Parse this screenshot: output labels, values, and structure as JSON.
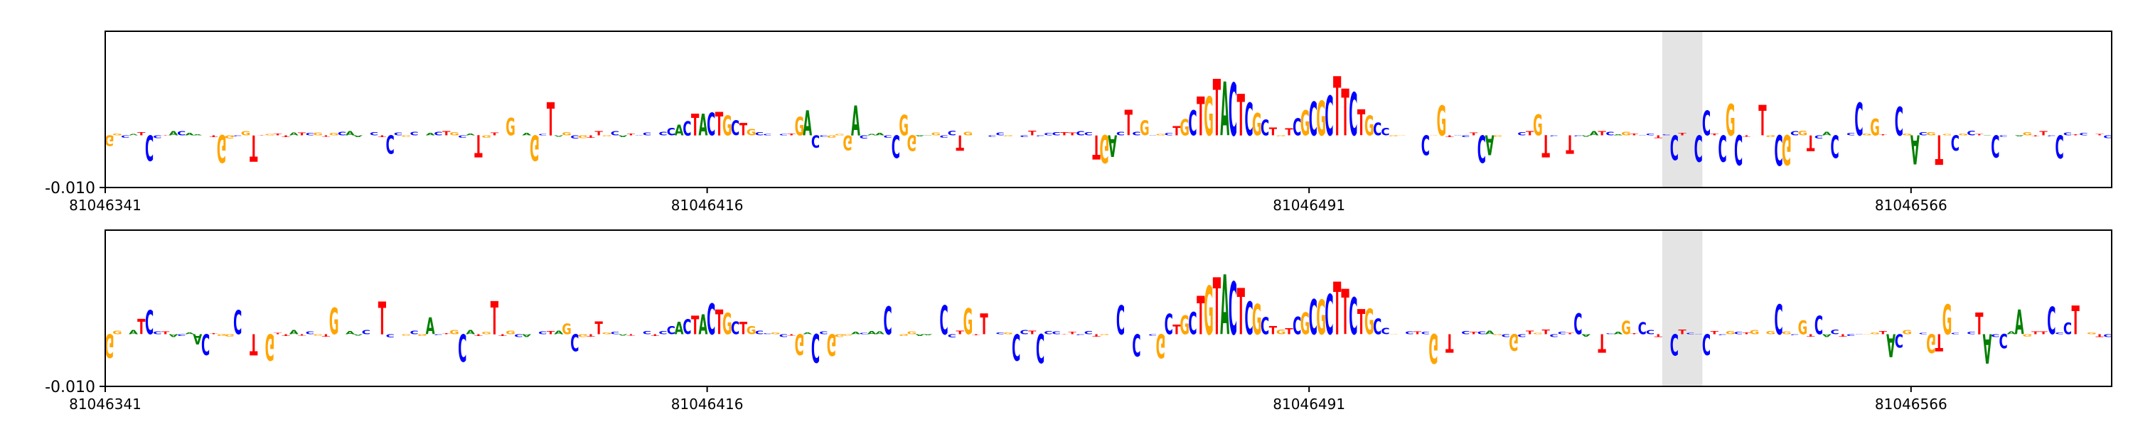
{
  "colors": {
    "A": "#008000",
    "C": "#0000ff",
    "G": "#ffa500",
    "T": "#ff0000",
    "highlight": "#e4e4e4",
    "axis": "#000000"
  },
  "chart_data": [
    {
      "type": "sequence-logo",
      "x_start": 81046341,
      "x_end": 81046591,
      "xticks": [
        "81046341",
        "81046416",
        "81046491",
        "81046566"
      ],
      "ytick_label": "-0.010",
      "ylim": [
        -0.01,
        0.02
      ],
      "highlight_range": [
        81046535,
        81046540
      ],
      "sequence": "GGCATCCTACAACTGGCGTTGTTATCGTGCAACCTCCGCGACTGCATGTTGCAGCTAGCGTTGCATCCTCCACTACTGCTGCCGCTGACCGGGACAACCGGAAGCCTGTTCCGCCTCCCTTCCTGACTCGCGCTGCTGTACTCGCTGTCGCGCTTCTGCCGGCTCGGTCCTCAGCGCTGTCCTCAATCAGTCCTCCTCCCTCGCTGTGCGCGTCACTCCGGTACGACGTGCGCTACCAAGTTCCCTCGTCCCT",
      "peaks": [
        {
          "pos": 81046416,
          "h": 0.006
        },
        {
          "pos": 81046480,
          "h": 0.014
        },
        {
          "pos": 81046494,
          "h": 0.012
        }
      ]
    },
    {
      "type": "sequence-logo",
      "x_start": 81046341,
      "x_end": 81046591,
      "xticks": [
        "81046341",
        "81046416",
        "81046491",
        "81046566"
      ],
      "ytick_label": "-0.010",
      "ylim": [
        -0.01,
        0.02
      ],
      "highlight_range": [
        81046535,
        81046540
      ],
      "sequence": "GGCATCCTACAACTGGCGTTGTTATCGTGCAACCTCCGCGACTGCATGTTGCAGCTAGCGTTGCATCCTCCACTACTGCTGCCGCTGACCGGGACAACCGGAAGCCTGTTCCGCCTCCCTTCCTGACTCGCGCTGCTGTACTCGCTGTCGCGCTTCTGCCGGCTCGGTCCTCAGCGCTGTCCTCAATCAGTCCTCCTCCCTCGCTGTGCGCGTCACTCCGGTACGACGTGCGCTACCAAGTTCCCTCGTCCCT",
      "peaks": [
        {
          "pos": 81046416,
          "h": 0.006
        },
        {
          "pos": 81046480,
          "h": 0.014
        },
        {
          "pos": 81046494,
          "h": 0.012
        }
      ]
    }
  ]
}
